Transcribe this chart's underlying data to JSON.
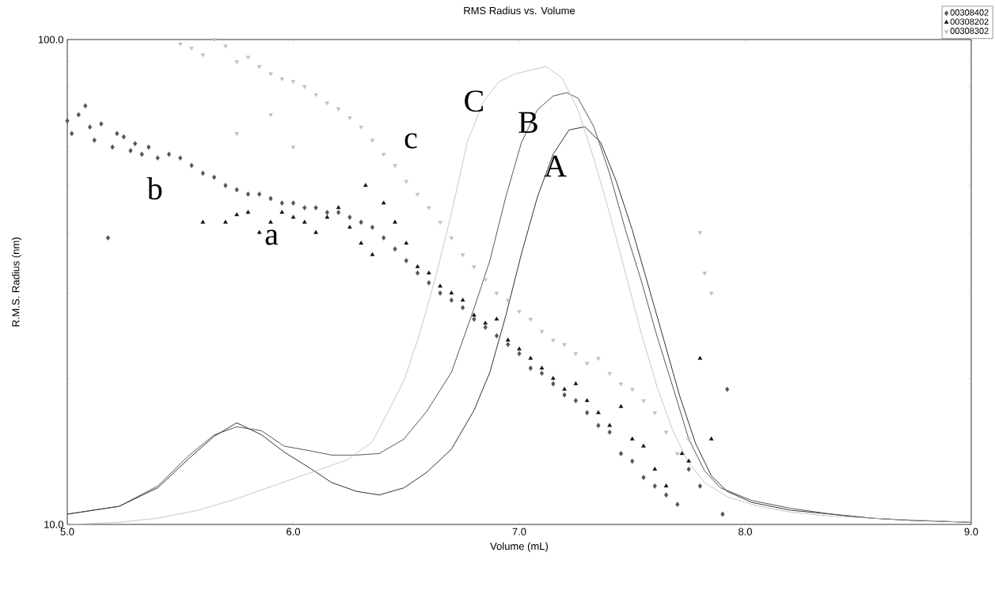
{
  "chart_data": {
    "type": "scatter",
    "title": "RMS Radius vs. Volume",
    "xlabel": "Volume (mL)",
    "ylabel": "R.M.S. Radius (nm)",
    "log": "y",
    "grid": false,
    "legend": "top right",
    "xlim": [
      5.0,
      9.0
    ],
    "xticks": [
      {
        "value": 5,
        "label": "5.0"
      },
      {
        "value": 6,
        "label": "6.0"
      },
      {
        "value": 7,
        "label": "7.0"
      },
      {
        "value": 8,
        "label": "8.0"
      },
      {
        "value": 9,
        "label": "9.0"
      }
    ],
    "ylim": [
      10,
      100
    ],
    "yticks": [
      {
        "value": 10,
        "label": "10.0"
      },
      {
        "value": 20,
        "label": null
      },
      {
        "value": 30,
        "label": null
      },
      {
        "value": 40,
        "label": null
      },
      {
        "value": 50,
        "label": null
      },
      {
        "value": 60,
        "label": null
      },
      {
        "value": 70,
        "label": null
      },
      {
        "value": 80,
        "label": null
      },
      {
        "value": 90,
        "label": null
      },
      {
        "value": 100,
        "label": "100.0"
      }
    ],
    "series": [
      {
        "name": "00308402",
        "marker": "diamond",
        "color": "#555555",
        "x": [
          5.0,
          5.02,
          5.05,
          5.08,
          5.1,
          5.12,
          5.15,
          5.18,
          5.2,
          5.22,
          5.25,
          5.28,
          5.3,
          5.33,
          5.36,
          5.4,
          5.45,
          5.5,
          5.55,
          5.6,
          5.65,
          5.7,
          5.75,
          5.8,
          5.85,
          5.9,
          5.95,
          6.0,
          6.05,
          6.1,
          6.15,
          6.2,
          6.25,
          6.3,
          6.35,
          6.4,
          6.45,
          6.5,
          6.55,
          6.6,
          6.65,
          6.7,
          6.75,
          6.8,
          6.85,
          6.9,
          6.95,
          7.0,
          7.05,
          7.1,
          7.15,
          7.2,
          7.25,
          7.3,
          7.35,
          7.4,
          7.45,
          7.5,
          7.55,
          7.6,
          7.65,
          7.7,
          7.75,
          7.8,
          7.9,
          7.92
        ],
        "values": [
          68,
          64,
          70,
          73,
          66,
          62,
          67,
          39,
          60,
          64,
          63,
          59,
          61,
          58,
          60,
          57,
          58,
          57,
          55,
          53,
          52,
          50,
          49,
          48,
          48,
          47,
          46,
          46,
          45,
          45,
          44,
          44,
          43,
          42,
          41,
          39,
          37,
          35,
          33,
          31.5,
          30,
          29,
          28,
          26.5,
          25.5,
          24.5,
          23.5,
          22.5,
          21,
          20.5,
          19.5,
          18.5,
          18,
          17,
          16,
          15.5,
          14,
          13.5,
          12.5,
          12,
          11.5,
          11,
          13,
          12,
          10.5,
          19
        ]
      },
      {
        "name": "00308202",
        "marker": "triangle",
        "color": "#111111",
        "x": [
          5.6,
          5.7,
          5.75,
          5.8,
          5.85,
          5.9,
          5.95,
          6.0,
          6.05,
          6.1,
          6.15,
          6.2,
          6.25,
          6.3,
          6.32,
          6.35,
          6.4,
          6.45,
          6.5,
          6.55,
          6.6,
          6.65,
          6.7,
          6.75,
          6.8,
          6.85,
          6.9,
          6.95,
          7.0,
          7.05,
          7.1,
          7.15,
          7.2,
          7.25,
          7.3,
          7.35,
          7.4,
          7.45,
          7.5,
          7.55,
          7.6,
          7.65,
          7.72,
          7.75,
          7.8,
          7.85
        ],
        "values": [
          42,
          42,
          43.5,
          44,
          40,
          42,
          44,
          43,
          42,
          40,
          43,
          45,
          41,
          38,
          50,
          36,
          46,
          42,
          38,
          34,
          33,
          31,
          30,
          29,
          27,
          26,
          26.5,
          24,
          23,
          22,
          21,
          20,
          19,
          19.5,
          18,
          17,
          16,
          17.5,
          15,
          14.5,
          13,
          12,
          14,
          13.5,
          22,
          15
        ]
      },
      {
        "name": "00308302",
        "marker": "triangle_down",
        "color": "#c0c0c0",
        "x": [
          5.5,
          5.55,
          5.6,
          5.65,
          5.7,
          5.75,
          5.8,
          5.85,
          5.9,
          5.95,
          6.0,
          6.05,
          6.1,
          6.15,
          6.2,
          6.25,
          6.3,
          6.35,
          6.4,
          6.45,
          6.5,
          6.55,
          6.6,
          6.65,
          6.7,
          6.75,
          6.8,
          6.85,
          6.9,
          6.95,
          7.0,
          7.05,
          7.1,
          7.15,
          7.2,
          7.25,
          7.3,
          7.35,
          7.4,
          7.45,
          7.5,
          7.55,
          7.6,
          7.65,
          7.7,
          7.75,
          7.8,
          7.82,
          7.85,
          5.75,
          5.9,
          6.0
        ],
        "values": [
          98,
          96,
          93,
          100,
          97,
          90,
          92,
          88,
          85,
          83,
          82,
          80,
          77,
          74,
          72,
          69,
          66,
          62,
          58,
          55,
          51,
          48,
          45,
          42,
          39,
          36,
          34,
          32,
          30,
          29,
          27.5,
          26.5,
          25,
          24,
          23.5,
          22.5,
          21.5,
          22,
          20.5,
          19.5,
          19,
          18,
          17,
          15.5,
          14,
          15,
          40,
          33,
          30,
          64,
          70,
          60
        ]
      },
      {
        "type": "line",
        "color": "#1a1a1a",
        "x": [
          5.0,
          5.23,
          5.4,
          5.54,
          5.65,
          5.75,
          5.86,
          5.96,
          6.07,
          6.17,
          6.28,
          6.38,
          6.49,
          6.59,
          6.7,
          6.8,
          6.87,
          6.94,
          7.01,
          7.08,
          7.15,
          7.22,
          7.29,
          7.36,
          7.43,
          7.5,
          7.57,
          7.64,
          7.71,
          7.78,
          7.85,
          7.92,
          8.03,
          8.2,
          8.38,
          8.56,
          8.73,
          9.0
        ],
        "values": [
          10.5,
          10.9,
          11.9,
          13.7,
          15.2,
          16.2,
          15.3,
          14.1,
          13.1,
          12.2,
          11.7,
          11.5,
          11.9,
          12.8,
          14.3,
          17.2,
          20.6,
          26.9,
          36.2,
          47.3,
          58.0,
          65.1,
          66.1,
          61.4,
          50.9,
          40.5,
          31.2,
          24.0,
          18.4,
          14.7,
          12.6,
          11.7,
          11.1,
          10.7,
          10.5,
          10.3,
          10.2,
          10.1
        ]
      },
      {
        "type": "line",
        "color": "#444444",
        "x": [
          5.0,
          5.23,
          5.4,
          5.54,
          5.65,
          5.75,
          5.86,
          5.96,
          6.07,
          6.17,
          6.28,
          6.38,
          6.49,
          6.59,
          6.7,
          6.8,
          6.87,
          6.94,
          7.01,
          7.08,
          7.15,
          7.21,
          7.26,
          7.33,
          7.4,
          7.47,
          7.54,
          7.61,
          7.68,
          7.75,
          7.82,
          7.89,
          8.03,
          8.2,
          8.38,
          8.56,
          8.73,
          9.0
        ],
        "values": [
          10.5,
          10.9,
          12.0,
          13.9,
          15.3,
          15.9,
          15.6,
          14.5,
          14.2,
          13.9,
          13.9,
          14.0,
          15.0,
          17.1,
          20.6,
          27.9,
          35.0,
          47.3,
          61.4,
          71.6,
          76.5,
          77.7,
          75.7,
          66.1,
          52.9,
          40.5,
          31.8,
          24.4,
          19.2,
          15.0,
          12.9,
          11.9,
          11.2,
          10.8,
          10.5,
          10.3,
          10.2,
          10.1
        ]
      },
      {
        "type": "line",
        "color": "#c0c0c0",
        "x": [
          5.0,
          5.23,
          5.4,
          5.58,
          5.75,
          5.93,
          6.1,
          6.24,
          6.35,
          6.42,
          6.49,
          6.56,
          6.63,
          6.7,
          6.77,
          6.84,
          6.91,
          6.98,
          7.05,
          7.12,
          7.19,
          7.26,
          7.33,
          7.4,
          7.47,
          7.54,
          7.61,
          7.68,
          7.75,
          7.82,
          7.92,
          8.06,
          8.2,
          8.38,
          8.56,
          9.0
        ],
        "values": [
          10.0,
          10.1,
          10.3,
          10.7,
          11.3,
          12.1,
          12.9,
          13.6,
          14.8,
          17.1,
          19.8,
          24.8,
          32.4,
          43.8,
          61.4,
          74.3,
          81.8,
          84.9,
          86.5,
          88.0,
          83.2,
          71.6,
          56.8,
          43.8,
          33.0,
          24.8,
          19.2,
          15.6,
          13.4,
          12.2,
          11.4,
          10.9,
          10.6,
          10.4,
          10.3,
          10.1
        ]
      }
    ],
    "annotations": [
      "A",
      "B",
      "C",
      "c",
      "b",
      "a"
    ]
  }
}
